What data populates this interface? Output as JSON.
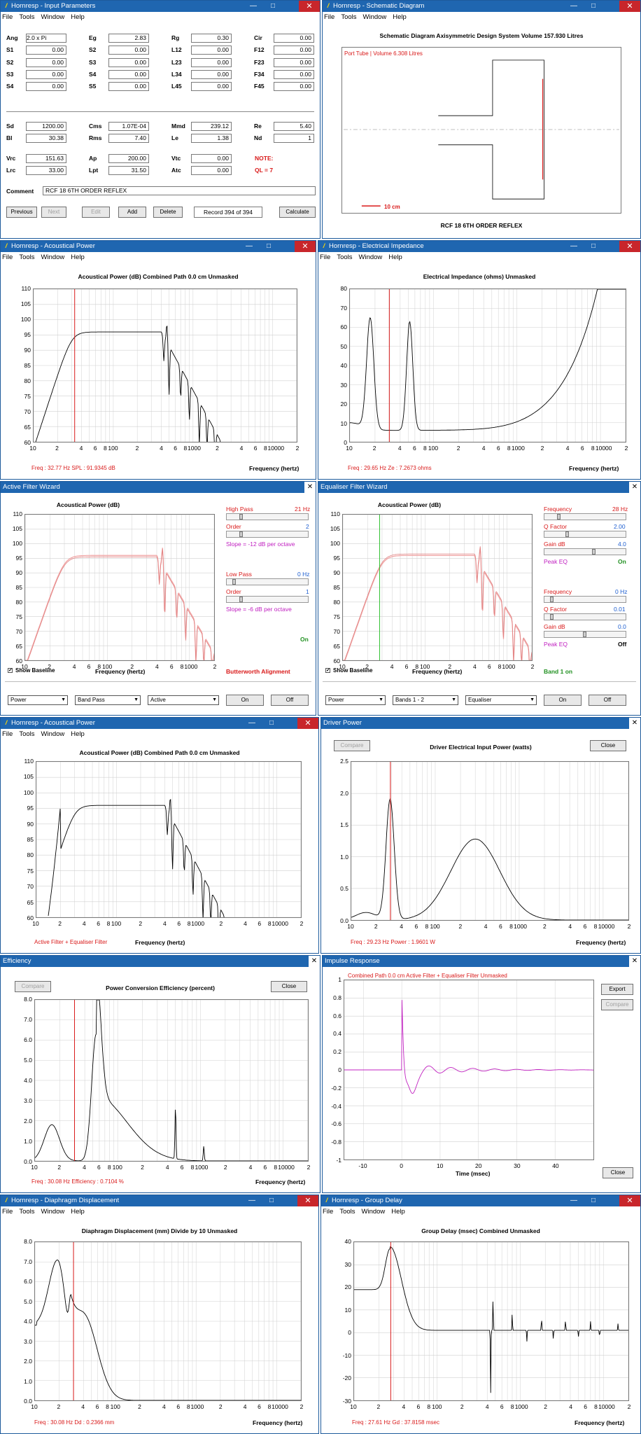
{
  "colors": {
    "titlebar": "#1f66b0",
    "close": "#c8262b",
    "curve": "#000000",
    "marker": "#d91a1a",
    "baseline": "#f0a0a0",
    "impulse": "#c020c0",
    "eq_marker": "#30c030"
  },
  "menu": [
    "File",
    "Tools",
    "Window",
    "Help"
  ],
  "title_bar_icons": [
    "minimize-icon",
    "maximize-icon",
    "close-icon"
  ],
  "input_params": {
    "title": "Hornresp - Input Parameters",
    "rows_a": [
      [
        [
          "Ang",
          "2.0 x Pi"
        ],
        [
          "Eg",
          "2.83"
        ],
        [
          "Rg",
          "0.30"
        ],
        [
          "Cir",
          "0.00"
        ]
      ],
      [
        [
          "S1",
          "0.00"
        ],
        [
          "S2",
          "0.00"
        ],
        [
          "L12",
          "0.00"
        ],
        [
          "F12",
          "0.00"
        ]
      ],
      [
        [
          "S2",
          "0.00"
        ],
        [
          "S3",
          "0.00"
        ],
        [
          "L23",
          "0.00"
        ],
        [
          "F23",
          "0.00"
        ]
      ],
      [
        [
          "S3",
          "0.00"
        ],
        [
          "S4",
          "0.00"
        ],
        [
          "L34",
          "0.00"
        ],
        [
          "F34",
          "0.00"
        ]
      ],
      [
        [
          "S4",
          "0.00"
        ],
        [
          "S5",
          "0.00"
        ],
        [
          "L45",
          "0.00"
        ],
        [
          "F45",
          "0.00"
        ]
      ]
    ],
    "rows_b": [
      [
        [
          "Sd",
          "1200.00"
        ],
        [
          "Cms",
          "1.07E-04"
        ],
        [
          "Mmd",
          "239.12"
        ],
        [
          "Re",
          "5.40"
        ]
      ],
      [
        [
          "Bl",
          "30.38"
        ],
        [
          "Rms",
          "7.40"
        ],
        [
          "Le",
          "1.38"
        ],
        [
          "Nd",
          "1"
        ]
      ]
    ],
    "rows_c": [
      [
        [
          "Vrc",
          "151.63"
        ],
        [
          "Ap",
          "200.00"
        ],
        [
          "Vtc",
          "0.00"
        ]
      ],
      [
        [
          "Lrc",
          "33.00"
        ],
        [
          "Lpt",
          "31.50"
        ],
        [
          "Atc",
          "0.00"
        ]
      ]
    ],
    "note": "NOTE:",
    "ql": "QL = 7",
    "comment_label": "Comment",
    "comment": "RCF 18 6TH ORDER REFLEX",
    "buttons": [
      "Previous",
      "Next",
      "Edit",
      "Add",
      "Delete"
    ],
    "record": "Record 394 of 394",
    "calculate": "Calculate"
  },
  "schematic": {
    "title": "Hornresp - Schematic Diagram",
    "heading": "Schematic Diagram    Axisymmetric Design    System Volume 157.930 Litres",
    "port_label": "Port Tube | Volume 6.308 Litres",
    "scale": "10 cm",
    "footer": "RCF 18 6TH ORDER REFLEX"
  },
  "acoustical_power": {
    "title": "Hornresp - Acoustical Power",
    "heading": "Acoustical Power (dB)    Combined    Path 0.0 cm    Unmasked",
    "y_ticks": [
      "110",
      "105",
      "100",
      "95",
      "90",
      "85",
      "80",
      "75",
      "70",
      "65",
      "60"
    ],
    "x_ticks": [
      "10",
      "2",
      "4",
      "6",
      "8",
      "100",
      "2",
      "4",
      "6",
      "8",
      "1000",
      "2",
      "4",
      "6",
      "8",
      "10000",
      "2"
    ],
    "xlabel": "Frequency (hertz)",
    "readout": "Freq : 32.77 Hz    SPL : 91.9345 dB"
  },
  "impedance": {
    "title": "Hornresp - Electrical Impedance",
    "heading": "Electrical Impedance (ohms)    Unmasked",
    "y_ticks": [
      "80",
      "70",
      "60",
      "50",
      "40",
      "30",
      "20",
      "10",
      "0"
    ],
    "x_ticks": [
      "10",
      "2",
      "4",
      "6",
      "8",
      "100",
      "2",
      "4",
      "6",
      "8",
      "1000",
      "2",
      "4",
      "6",
      "8",
      "10000",
      "2"
    ],
    "xlabel": "Frequency (hertz)",
    "readout": "Freq : 29.65 Hz    Ze : 7.2673 ohms"
  },
  "active_filter": {
    "title": "Active Filter Wizard",
    "heading": "Acoustical Power (dB)",
    "y_ticks": [
      "110",
      "105",
      "100",
      "95",
      "90",
      "85",
      "80",
      "75",
      "70",
      "65",
      "60"
    ],
    "x_ticks": [
      "10",
      "2",
      "4",
      "6",
      "8",
      "100",
      "2",
      "4",
      "6",
      "8",
      "1000",
      "2"
    ],
    "xlabel": "Frequency (hertz)",
    "hp_label": "High Pass",
    "hp_val": "21 Hz",
    "order1_label": "Order",
    "order1_val": "2",
    "slope1": "Slope = -12 dB per octave",
    "lp_label": "Low Pass",
    "lp_val": "0 Hz",
    "order2_label": "Order",
    "order2_val": "1",
    "slope2": "Slope = -6 dB per octave",
    "on": "On",
    "show_baseline": "Show Baseline",
    "alignment": "Butterworth Alignment",
    "selects": [
      "Power",
      "Band Pass",
      "Active"
    ],
    "btn_on": "On",
    "btn_off": "Off"
  },
  "equaliser": {
    "title": "Equaliser Filter Wizard",
    "heading": "Acoustical Power (dB)",
    "y_ticks": [
      "110",
      "105",
      "100",
      "95",
      "90",
      "85",
      "80",
      "75",
      "70",
      "65",
      "60"
    ],
    "x_ticks": [
      "10",
      "2",
      "4",
      "6",
      "8",
      "100",
      "2",
      "4",
      "6",
      "8",
      "1000",
      "2"
    ],
    "xlabel": "Frequency (hertz)",
    "f1_label": "Frequency",
    "f1_val": "28 Hz",
    "q1_label": "Q Factor",
    "q1_val": "2.00",
    "g1_label": "Gain  dB",
    "g1_val": "4.0",
    "peq1": "Peak EQ",
    "peq1_state": "On",
    "f2_label": "Frequency",
    "f2_val": "0 Hz",
    "q2_label": "Q Factor",
    "q2_val": "0.01",
    "g2_label": "Gain  dB",
    "g2_val": "0.0",
    "peq2": "Peak EQ",
    "peq2_state": "Off",
    "band": "Band 1 on",
    "show_baseline": "Show Baseline",
    "selects": [
      "Power",
      "Bands 1 - 2",
      "Equaliser"
    ],
    "btn_on": "On",
    "btn_off": "Off"
  },
  "acoustical_power2": {
    "title": "Hornresp - Acoustical Power",
    "heading": "Acoustical Power (dB)    Combined    Path 0.0 cm    Unmasked",
    "y_ticks": [
      "110",
      "105",
      "100",
      "95",
      "90",
      "85",
      "80",
      "75",
      "70",
      "65",
      "60"
    ],
    "x_ticks": [
      "10",
      "2",
      "4",
      "6",
      "8",
      "100",
      "2",
      "4",
      "6",
      "8",
      "1000",
      "2",
      "4",
      "6",
      "8",
      "10000",
      "2"
    ],
    "xlabel": "Frequency (hertz)",
    "readout": "Active Filter + Equaliser Filter"
  },
  "driver_power": {
    "title": "Driver Power",
    "compare": "Compare",
    "close": "Close",
    "heading": "Driver Electrical Input Power (watts)",
    "y_ticks": [
      "2.5",
      "2.0",
      "1.5",
      "1.0",
      "0.5",
      "0.0"
    ],
    "x_ticks": [
      "10",
      "2",
      "4",
      "6",
      "8",
      "100",
      "2",
      "4",
      "6",
      "8",
      "1000",
      "2",
      "4",
      "6",
      "8",
      "10000",
      "2"
    ],
    "xlabel": "Frequency (hertz)",
    "readout": "Freq : 29.23 Hz    Power : 1.9601 W"
  },
  "efficiency": {
    "title": "Efficiency",
    "compare": "Compare",
    "close": "Close",
    "heading": "Power Conversion Efficiency (percent)",
    "y_ticks": [
      "8.0",
      "7.0",
      "6.0",
      "5.0",
      "4.0",
      "3.0",
      "2.0",
      "1.0",
      "0.0"
    ],
    "x_ticks": [
      "10",
      "2",
      "4",
      "6",
      "8",
      "100",
      "2",
      "4",
      "6",
      "8",
      "1000",
      "2",
      "4",
      "6",
      "8",
      "10000",
      "2"
    ],
    "xlabel": "Frequency (hertz)",
    "readout": "Freq : 30.08 Hz    Efficiency : 0.7104 %"
  },
  "impulse": {
    "title": "Impulse Response",
    "heading": "Combined    Path 0.0 cm    Active Filter + Equaliser Filter    Unmasked",
    "export": "Export",
    "compare": "Compare",
    "close": "Close",
    "y_ticks": [
      "1",
      "0.8",
      "0.6",
      "0.4",
      "0.2",
      "0",
      "-0.2",
      "-0.4",
      "-0.6",
      "-0.8",
      "-1"
    ],
    "x_ticks": [
      "-10",
      "0",
      "10",
      "20",
      "30",
      "40"
    ],
    "xlabel": "Time (msec)"
  },
  "displacement": {
    "title": "Hornresp - Diaphragm Displacement",
    "heading": "Diaphragm Displacement (mm)    Divide by 10    Unmasked",
    "y_ticks": [
      "8.0",
      "7.0",
      "6.0",
      "5.0",
      "4.0",
      "3.0",
      "2.0",
      "1.0",
      "0.0"
    ],
    "x_ticks": [
      "10",
      "2",
      "4",
      "6",
      "8",
      "100",
      "2",
      "4",
      "6",
      "8",
      "1000",
      "2",
      "4",
      "6",
      "8",
      "10000",
      "2"
    ],
    "xlabel": "Frequency (hertz)",
    "readout": "Freq : 30.08 Hz    Dd : 0.2366 mm"
  },
  "group_delay": {
    "title": "Hornresp - Group Delay",
    "heading": "Group Delay (msec)    Combined    Unmasked",
    "y_ticks": [
      "40",
      "30",
      "20",
      "10",
      "0",
      "-10",
      "-20",
      "-30"
    ],
    "x_ticks": [
      "10",
      "2",
      "4",
      "6",
      "8",
      "100",
      "2",
      "4",
      "6",
      "8",
      "1000",
      "2",
      "4",
      "6",
      "8",
      "10000",
      "2"
    ],
    "xlabel": "Frequency (hertz)",
    "readout": "Freq : 27.61 Hz    Gd : 37.8158 msec"
  }
}
